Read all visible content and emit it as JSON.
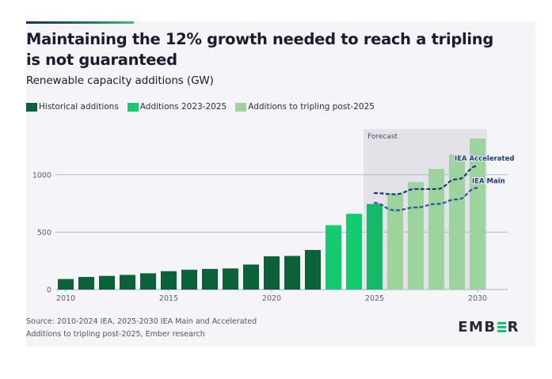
{
  "title": "Maintaining the 12% growth needed to reach a tripling is not guaranteed",
  "subtitle": "Renewable capacity additions (GW)",
  "legend": [
    {
      "label": "Historical additions",
      "color": "#0b6138"
    },
    {
      "label": "Additions 2023-2025",
      "color": "#13cc70"
    },
    {
      "label": "Additions to tripling post-2025",
      "color": "#9dd49e"
    }
  ],
  "source_lines": [
    "Source: 2010-2024 IEA, 2025-2030 IEA Main and Accelerated",
    "Additions to tripling post-2025, Ember research"
  ],
  "logo": {
    "text_left": "EMB",
    "text_right": "R",
    "accent_color": "#13c46c"
  },
  "chart_data": {
    "type": "bar",
    "title": "Maintaining the 12% growth needed to reach a tripling is not guaranteed",
    "subtitle": "Renewable capacity additions (GW)",
    "xlabel": "",
    "ylabel": "GW",
    "ylim": [
      0,
      1400
    ],
    "yticks": [
      0,
      500,
      1000
    ],
    "xticks": [
      2010,
      2015,
      2020,
      2025,
      2030
    ],
    "grid": true,
    "legend_position": "top-left",
    "categories": [
      2010,
      2011,
      2012,
      2013,
      2014,
      2015,
      2016,
      2017,
      2018,
      2019,
      2020,
      2021,
      2022,
      2023,
      2024,
      2025,
      2026,
      2027,
      2028,
      2029,
      2030
    ],
    "series": [
      {
        "name": "Historical additions",
        "color": "#0b6138",
        "x": [
          2010,
          2011,
          2012,
          2013,
          2014,
          2015,
          2016,
          2017,
          2018,
          2019,
          2020,
          2021,
          2022
        ],
        "values": [
          92,
          110,
          119,
          128,
          142,
          160,
          173,
          180,
          184,
          218,
          290,
          293,
          345
        ]
      },
      {
        "name": "Additions 2023-2025",
        "color": "#13cc70",
        "x": [
          2023,
          2024,
          2025
        ],
        "values": [
          560,
          660,
          745
        ]
      },
      {
        "name": "Additions to tripling post-2025",
        "color": "#9dd49e",
        "x": [
          2026,
          2027,
          2028,
          2029,
          2030
        ],
        "values": [
          835,
          935,
          1050,
          1175,
          1315
        ]
      }
    ],
    "lines": [
      {
        "name": "IEA Accelerated",
        "label": "IEA Accelerated",
        "color": "#203a78",
        "style": "dashed",
        "x": [
          2025,
          2026,
          2027,
          2028,
          2029,
          2030
        ],
        "values": [
          840,
          830,
          875,
          875,
          960,
          1075
        ]
      },
      {
        "name": "IEA Main",
        "label": "IEA Main",
        "color": "#2a5a9a",
        "style": "dashed",
        "x": [
          2025,
          2026,
          2027,
          2028,
          2029,
          2030
        ],
        "values": [
          755,
          690,
          715,
          745,
          785,
          885
        ]
      }
    ],
    "annotations": [
      {
        "text": "Forecast",
        "x_range": [
          2025,
          2030
        ],
        "type": "shaded-region",
        "color": "#e2e2e8"
      }
    ]
  }
}
